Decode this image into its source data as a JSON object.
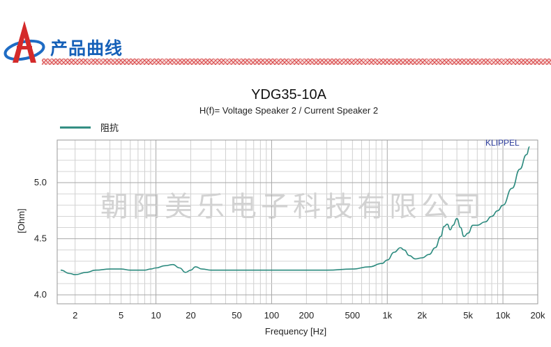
{
  "header": {
    "title": "产品曲线"
  },
  "chart_data": {
    "type": "line",
    "title": "YDG35-10A",
    "subtitle": "H(f)= Voltage Speaker 2 / Current Speaker 2",
    "xlabel": "Frequency [Hz]",
    "ylabel": "[Ohm]",
    "xscale": "log",
    "xlim": [
      1.4,
      20000
    ],
    "ylim": [
      3.92,
      5.38
    ],
    "xticks": [
      2,
      5,
      10,
      20,
      50,
      100,
      200,
      500,
      1000,
      2000,
      5000,
      10000,
      20000
    ],
    "xtick_labels": [
      "2",
      "5",
      "10",
      "20",
      "50",
      "100",
      "200",
      "500",
      "1k",
      "2k",
      "5k",
      "10k",
      "20k"
    ],
    "yticks": [
      4.0,
      4.5,
      5.0
    ],
    "ytick_labels": [
      "4.0",
      "4.5",
      "5.0"
    ],
    "grid": true,
    "legend_position": "top-left",
    "watermark": "朝阳美乐电子科技有限公司",
    "brand_label": "KLIPPEL",
    "series": [
      {
        "name": "阻抗",
        "color": "#2b8a7e",
        "x": [
          1.5,
          1.8,
          2.0,
          2.5,
          3,
          4,
          5,
          6,
          7,
          8,
          9,
          10,
          12,
          14,
          16,
          18,
          20,
          22,
          25,
          30,
          40,
          50,
          70,
          100,
          150,
          200,
          300,
          500,
          700,
          900,
          1000,
          1150,
          1300,
          1400,
          1550,
          1750,
          2000,
          2300,
          2600,
          2900,
          3100,
          3300,
          3500,
          3700,
          4000,
          4300,
          4600,
          5000,
          5500,
          6000,
          7000,
          8000,
          9000,
          10000,
          12000,
          14000,
          16000,
          17000
        ],
        "values": [
          4.22,
          4.19,
          4.18,
          4.2,
          4.22,
          4.23,
          4.23,
          4.22,
          4.22,
          4.22,
          4.23,
          4.24,
          4.26,
          4.27,
          4.24,
          4.2,
          4.22,
          4.25,
          4.23,
          4.22,
          4.22,
          4.22,
          4.22,
          4.22,
          4.22,
          4.22,
          4.22,
          4.23,
          4.25,
          4.28,
          4.31,
          4.38,
          4.42,
          4.4,
          4.35,
          4.32,
          4.33,
          4.36,
          4.42,
          4.52,
          4.61,
          4.63,
          4.58,
          4.62,
          4.68,
          4.6,
          4.52,
          4.55,
          4.62,
          4.62,
          4.65,
          4.7,
          4.75,
          4.8,
          4.95,
          5.12,
          5.25,
          5.32
        ]
      }
    ]
  }
}
